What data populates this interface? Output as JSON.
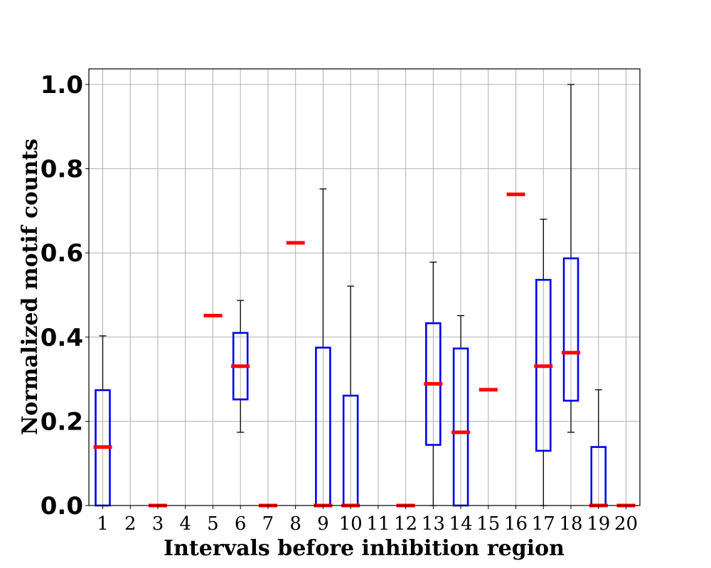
{
  "chart_data": {
    "type": "box",
    "xlabel": "Intervals before inhibition region",
    "ylabel": "Normalized motif counts",
    "ylim": [
      0,
      1.04
    ],
    "yticks": [
      "0.0",
      "0.2",
      "0.4",
      "0.6",
      "0.8",
      "1.0"
    ],
    "grid": true,
    "categories": [
      "1",
      "2",
      "3",
      "4",
      "5",
      "6",
      "7",
      "8",
      "9",
      "10",
      "11",
      "12",
      "13",
      "14",
      "15",
      "16",
      "17",
      "18",
      "19",
      "20"
    ],
    "boxes": [
      {
        "x": "1",
        "min": 0,
        "q1": 0,
        "median": 0.139,
        "q3": 0.274,
        "max": 0.403
      },
      {
        "x": "2"
      },
      {
        "x": "3",
        "min": 0,
        "q1": 0,
        "median": 0,
        "q3": 0,
        "max": 0
      },
      {
        "x": "4"
      },
      {
        "x": "5",
        "min": 0.451,
        "q1": 0.451,
        "median": 0.451,
        "q3": 0.451,
        "max": 0.451
      },
      {
        "x": "6",
        "min": 0.174,
        "q1": 0.252,
        "median": 0.331,
        "q3": 0.41,
        "max": 0.487
      },
      {
        "x": "7",
        "min": 0,
        "q1": 0,
        "median": 0,
        "q3": 0,
        "max": 0
      },
      {
        "x": "8",
        "min": 0.624,
        "q1": 0.624,
        "median": 0.624,
        "q3": 0.624,
        "max": 0.624
      },
      {
        "x": "9",
        "min": 0,
        "q1": 0,
        "median": 0,
        "q3": 0.375,
        "max": 0.752
      },
      {
        "x": "10",
        "min": 0,
        "q1": 0,
        "median": 0,
        "q3": 0.261,
        "max": 0.521
      },
      {
        "x": "11"
      },
      {
        "x": "12",
        "min": 0,
        "q1": 0,
        "median": 0,
        "q3": 0,
        "max": 0
      },
      {
        "x": "13",
        "min": 0,
        "q1": 0.144,
        "median": 0.289,
        "q3": 0.433,
        "max": 0.578
      },
      {
        "x": "14",
        "min": 0,
        "q1": 0,
        "median": 0.174,
        "q3": 0.373,
        "max": 0.451
      },
      {
        "x": "15",
        "min": 0.275,
        "q1": 0.275,
        "median": 0.275,
        "q3": 0.275,
        "max": 0.275
      },
      {
        "x": "16",
        "min": 0.739,
        "q1": 0.739,
        "median": 0.739,
        "q3": 0.739,
        "max": 0.739
      },
      {
        "x": "17",
        "min": 0,
        "q1": 0.13,
        "median": 0.331,
        "q3": 0.536,
        "max": 0.68
      },
      {
        "x": "18",
        "min": 0.174,
        "q1": 0.249,
        "median": 0.363,
        "q3": 0.587,
        "max": 1.0
      },
      {
        "x": "19",
        "min": 0,
        "q1": 0,
        "median": 0,
        "q3": 0.139,
        "max": 0.275
      },
      {
        "x": "20",
        "min": 0,
        "q1": 0,
        "median": 0,
        "q3": 0,
        "max": 0
      }
    ],
    "colors": {
      "box": "#0000ee",
      "median": "#ff0000",
      "whisker": "#000000",
      "grid": "#b0b0b0"
    }
  }
}
